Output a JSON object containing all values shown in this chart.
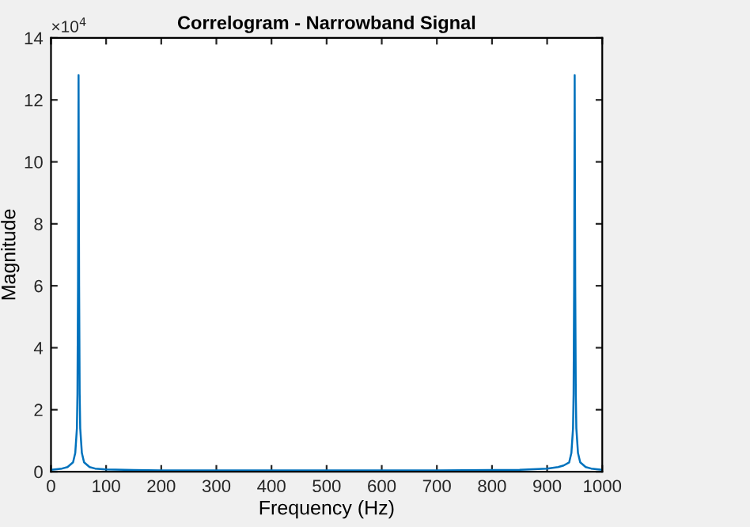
{
  "chart_data": {
    "type": "line",
    "title": "Correlogram - Narrowband Signal",
    "xlabel": "Frequency (Hz)",
    "ylabel": "Magnitude",
    "annotations": [
      "×10$^{4}$"
    ],
    "x": [
      0,
      10,
      20,
      30,
      40,
      44,
      47,
      48,
      49,
      50,
      51,
      52,
      53,
      56,
      60,
      70,
      80,
      100,
      150,
      200,
      300,
      400,
      500,
      600,
      700,
      800,
      850,
      900,
      920,
      930,
      940,
      944,
      947,
      948,
      949,
      950,
      951,
      952,
      953,
      956,
      960,
      970,
      980,
      990,
      1000
    ],
    "series": [
      {
        "color": "#0072bd",
        "values": [
          0.06,
          0.08,
          0.1,
          0.15,
          0.3,
          0.6,
          1.4,
          2.5,
          6,
          12.8,
          6,
          2.5,
          1.4,
          0.6,
          0.3,
          0.15,
          0.1,
          0.07,
          0.05,
          0.04,
          0.04,
          0.04,
          0.04,
          0.04,
          0.04,
          0.05,
          0.06,
          0.1,
          0.15,
          0.2,
          0.3,
          0.6,
          1.4,
          2.5,
          6,
          12.8,
          6,
          2.5,
          1.4,
          0.6,
          0.3,
          0.15,
          0.1,
          0.08,
          0.06
        ]
      }
    ],
    "xlim": [
      0,
      1000
    ],
    "xticks": [
      0,
      100,
      200,
      300,
      400,
      500,
      600,
      700,
      800,
      900,
      1000
    ],
    "ylim": [
      0,
      14
    ],
    "yticks": [
      0,
      2,
      4,
      6,
      8,
      10,
      12,
      14
    ],
    "grid": false,
    "marker": "none",
    "line_style": "solid"
  }
}
